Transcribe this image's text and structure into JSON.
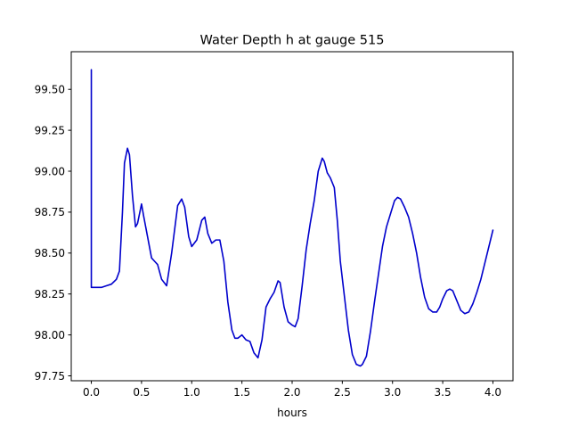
{
  "chart_data": {
    "type": "line",
    "title": "Water Depth h at gauge 515",
    "xlabel": "hours",
    "ylabel": "",
    "xlim": [
      -0.2,
      4.2
    ],
    "ylim": [
      97.72,
      99.73
    ],
    "grid": false,
    "xticks": [
      0.0,
      0.5,
      1.0,
      1.5,
      2.0,
      2.5,
      3.0,
      3.5,
      4.0
    ],
    "xtick_labels": [
      "0.0",
      "0.5",
      "1.0",
      "1.5",
      "2.0",
      "2.5",
      "3.0",
      "3.5",
      "4.0"
    ],
    "yticks": [
      97.75,
      98.0,
      98.25,
      98.5,
      98.75,
      99.0,
      99.25,
      99.5
    ],
    "ytick_labels": [
      "97.75",
      "98.00",
      "98.25",
      "98.50",
      "98.75",
      "99.00",
      "99.25",
      "99.50"
    ],
    "series": [
      {
        "color": "#0000cc",
        "x": [
          0.0,
          0.0,
          0.001,
          0.05,
          0.1,
          0.15,
          0.2,
          0.25,
          0.28,
          0.31,
          0.33,
          0.36,
          0.38,
          0.41,
          0.44,
          0.46,
          0.5,
          0.52,
          0.56,
          0.6,
          0.63,
          0.66,
          0.7,
          0.75,
          0.8,
          0.86,
          0.9,
          0.93,
          0.97,
          1.0,
          1.05,
          1.1,
          1.13,
          1.16,
          1.2,
          1.24,
          1.28,
          1.32,
          1.36,
          1.4,
          1.43,
          1.46,
          1.5,
          1.54,
          1.58,
          1.62,
          1.66,
          1.7,
          1.74,
          1.78,
          1.82,
          1.86,
          1.88,
          1.92,
          1.96,
          2.0,
          2.03,
          2.06,
          2.1,
          2.14,
          2.18,
          2.22,
          2.26,
          2.3,
          2.32,
          2.35,
          2.38,
          2.42,
          2.45,
          2.48,
          2.52,
          2.56,
          2.6,
          2.64,
          2.68,
          2.7,
          2.74,
          2.78,
          2.82,
          2.86,
          2.9,
          2.94,
          2.98,
          3.02,
          3.05,
          3.08,
          3.12,
          3.16,
          3.2,
          3.24,
          3.28,
          3.32,
          3.36,
          3.4,
          3.44,
          3.47,
          3.5,
          3.54,
          3.57,
          3.6,
          3.64,
          3.68,
          3.72,
          3.76,
          3.8,
          3.84,
          3.88,
          3.92,
          3.96,
          4.0
        ],
        "y": [
          99.62,
          98.29,
          98.29,
          98.29,
          98.29,
          98.3,
          98.31,
          98.34,
          98.39,
          98.75,
          99.05,
          99.14,
          99.1,
          98.85,
          98.66,
          98.68,
          98.8,
          98.73,
          98.6,
          98.47,
          98.45,
          98.43,
          98.34,
          98.3,
          98.5,
          98.79,
          98.83,
          98.78,
          98.6,
          98.54,
          98.58,
          98.7,
          98.72,
          98.62,
          98.56,
          98.58,
          98.58,
          98.45,
          98.2,
          98.03,
          97.98,
          97.98,
          98.0,
          97.97,
          97.96,
          97.89,
          97.86,
          97.97,
          98.17,
          98.22,
          98.26,
          98.33,
          98.32,
          98.17,
          98.08,
          98.06,
          98.05,
          98.1,
          98.3,
          98.52,
          98.68,
          98.82,
          99.0,
          99.08,
          99.06,
          98.99,
          98.96,
          98.9,
          98.7,
          98.45,
          98.24,
          98.03,
          97.88,
          97.82,
          97.81,
          97.82,
          97.87,
          98.02,
          98.2,
          98.37,
          98.54,
          98.66,
          98.74,
          98.82,
          98.84,
          98.83,
          98.78,
          98.72,
          98.62,
          98.5,
          98.35,
          98.23,
          98.16,
          98.14,
          98.14,
          98.17,
          98.22,
          98.27,
          98.28,
          98.27,
          98.21,
          98.15,
          98.13,
          98.14,
          98.19,
          98.26,
          98.34,
          98.44,
          98.54,
          98.64
        ]
      }
    ]
  }
}
